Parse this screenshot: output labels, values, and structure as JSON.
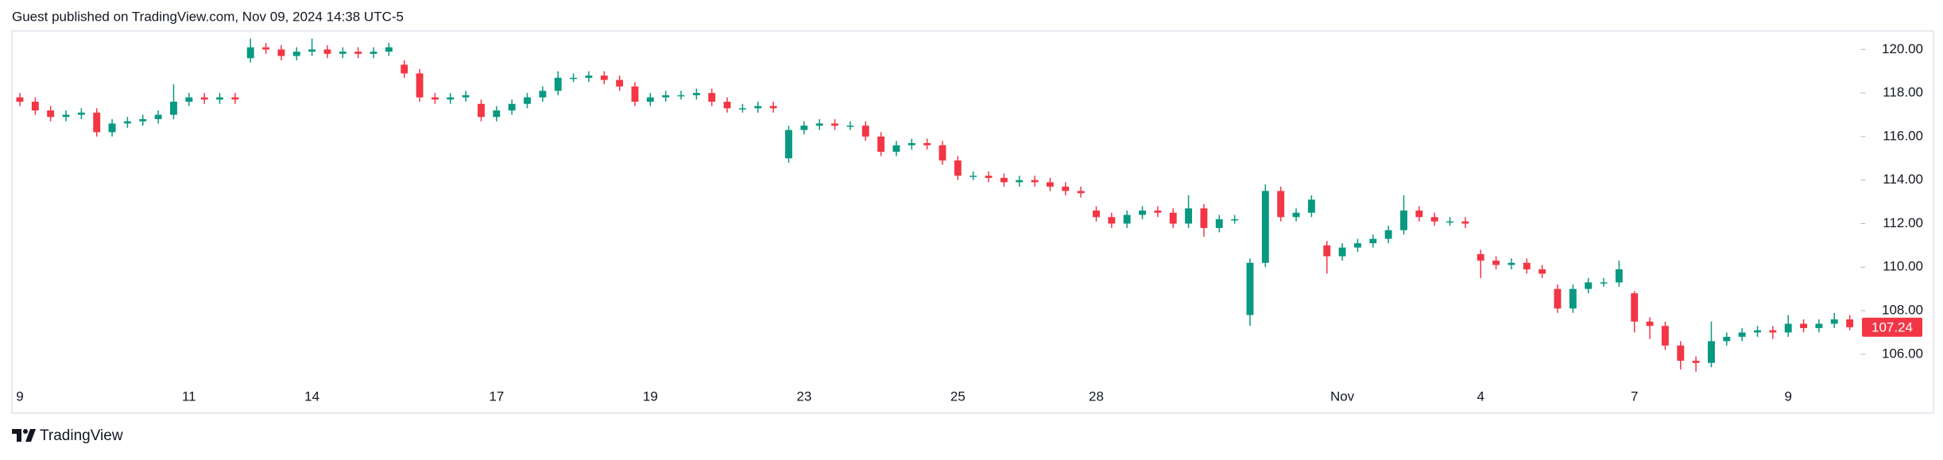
{
  "chart_data": {
    "type": "candlestick",
    "title": "Guest published on TradingView.com, Nov 09, 2024 14:38 UTC-5",
    "brand": "TradingView",
    "up_color": "#089981",
    "down_color": "#f23645",
    "ylim": [
      104.9,
      120.74
    ],
    "yticks": [
      {
        "value": 106,
        "label": "106.00"
      },
      {
        "value": 108,
        "label": "108.00"
      },
      {
        "value": 110,
        "label": "110.00"
      },
      {
        "value": 112,
        "label": "112.00"
      },
      {
        "value": 114,
        "label": "114.00"
      },
      {
        "value": 116,
        "label": "116.00"
      },
      {
        "value": 118,
        "label": "118.00"
      },
      {
        "value": 120,
        "label": "120.00"
      }
    ],
    "categories": [
      "9",
      null,
      null,
      null,
      null,
      null,
      null,
      null,
      null,
      null,
      null,
      "11",
      null,
      null,
      null,
      null,
      null,
      null,
      null,
      "14",
      null,
      null,
      null,
      null,
      null,
      null,
      null,
      null,
      null,
      null,
      null,
      "17",
      null,
      null,
      null,
      null,
      null,
      null,
      null,
      null,
      null,
      "19",
      null,
      null,
      null,
      null,
      null,
      null,
      null,
      null,
      null,
      "23",
      null,
      null,
      null,
      null,
      null,
      null,
      null,
      null,
      null,
      "25",
      null,
      null,
      null,
      null,
      null,
      null,
      null,
      null,
      "28",
      null,
      null,
      null,
      null,
      null,
      null,
      null,
      null,
      null,
      null,
      null,
      null,
      null,
      null,
      null,
      "Nov",
      null,
      null,
      null,
      null,
      null,
      null,
      null,
      null,
      "4",
      null,
      null,
      null,
      null,
      null,
      null,
      null,
      null,
      null,
      "7",
      null,
      null,
      null,
      null,
      null,
      null,
      null,
      null,
      null,
      "9",
      null,
      null,
      null,
      null
    ],
    "open": [
      117.8,
      117.6,
      117.2,
      116.9,
      117.0,
      117.1,
      116.2,
      116.6,
      116.7,
      116.8,
      117.0,
      117.6,
      117.8,
      117.7,
      117.8,
      119.6,
      120.1,
      120.0,
      119.7,
      119.9,
      120.0,
      119.8,
      119.9,
      119.8,
      119.9,
      119.3,
      118.9,
      117.8,
      117.7,
      117.8,
      117.5,
      116.9,
      117.2,
      117.5,
      117.8,
      118.1,
      118.7,
      118.7,
      118.8,
      118.6,
      118.3,
      117.6,
      117.8,
      117.9,
      117.9,
      118.0,
      117.6,
      117.3,
      117.3,
      117.4,
      115.0,
      116.3,
      116.5,
      116.6,
      116.5,
      116.5,
      116.0,
      115.3,
      115.6,
      115.7,
      115.6,
      114.9,
      114.2,
      114.2,
      114.1,
      113.9,
      114.0,
      113.9,
      113.7,
      113.5,
      112.6,
      112.3,
      112.0,
      112.4,
      112.6,
      112.5,
      112.0,
      112.7,
      111.8,
      112.2,
      107.8,
      110.2,
      113.5,
      112.3,
      112.5,
      111.0,
      110.5,
      110.9,
      111.1,
      111.3,
      111.7,
      112.6,
      112.3,
      112.1,
      112.1,
      110.6,
      110.3,
      110.1,
      110.2,
      109.9,
      109.0,
      108.1,
      109.0,
      109.3,
      109.3,
      108.8,
      107.5,
      107.3,
      106.4,
      105.7,
      105.6,
      106.6,
      106.8,
      107.0,
      107.1,
      107.0,
      107.4,
      107.2,
      107.4,
      107.6
    ],
    "high": [
      118.0,
      117.8,
      117.4,
      117.2,
      117.3,
      117.3,
      116.8,
      116.9,
      117.0,
      117.2,
      118.4,
      118.0,
      118.0,
      118.0,
      118.0,
      120.5,
      120.3,
      120.2,
      120.1,
      120.5,
      120.2,
      120.1,
      120.1,
      120.1,
      120.3,
      119.5,
      119.1,
      118.0,
      118.0,
      118.1,
      117.7,
      117.4,
      117.7,
      118.0,
      118.3,
      119.0,
      118.9,
      119.0,
      119.0,
      118.8,
      118.5,
      118.0,
      118.1,
      118.1,
      118.2,
      118.2,
      117.8,
      117.5,
      117.6,
      117.6,
      116.5,
      116.7,
      116.8,
      116.8,
      116.7,
      116.7,
      116.2,
      115.8,
      115.9,
      115.9,
      115.8,
      115.1,
      114.4,
      114.4,
      114.3,
      114.2,
      114.2,
      114.1,
      113.9,
      113.7,
      112.8,
      112.5,
      112.6,
      112.8,
      112.8,
      112.7,
      113.3,
      112.9,
      112.4,
      112.4,
      110.4,
      113.8,
      113.7,
      112.7,
      113.3,
      111.2,
      111.1,
      111.3,
      111.5,
      111.9,
      113.3,
      112.8,
      112.5,
      112.3,
      112.3,
      110.8,
      110.5,
      110.4,
      110.4,
      110.1,
      109.2,
      109.2,
      109.5,
      109.5,
      110.3,
      108.9,
      107.7,
      107.5,
      106.6,
      105.9,
      107.5,
      107.0,
      107.2,
      107.3,
      107.3,
      107.8,
      107.6,
      107.6,
      107.9,
      107.8
    ],
    "low": [
      117.4,
      117.0,
      116.7,
      116.7,
      116.8,
      116.0,
      116.0,
      116.4,
      116.5,
      116.6,
      116.8,
      117.4,
      117.5,
      117.5,
      117.5,
      119.4,
      119.8,
      119.5,
      119.5,
      119.7,
      119.6,
      119.6,
      119.6,
      119.6,
      119.7,
      118.7,
      117.6,
      117.5,
      117.5,
      117.6,
      116.7,
      116.7,
      117.0,
      117.3,
      117.6,
      117.9,
      118.5,
      118.5,
      118.4,
      118.1,
      117.4,
      117.4,
      117.6,
      117.7,
      117.7,
      117.4,
      117.1,
      117.1,
      117.1,
      117.1,
      114.8,
      116.1,
      116.3,
      116.3,
      116.3,
      115.8,
      115.1,
      115.1,
      115.4,
      115.4,
      114.7,
      114.0,
      114.0,
      113.9,
      113.7,
      113.7,
      113.7,
      113.5,
      113.3,
      113.2,
      112.1,
      111.8,
      111.8,
      112.2,
      112.3,
      111.8,
      111.8,
      111.4,
      111.6,
      112.0,
      107.3,
      110.0,
      112.1,
      112.1,
      112.3,
      109.7,
      110.3,
      110.7,
      110.9,
      111.1,
      111.5,
      112.1,
      111.9,
      111.9,
      111.8,
      109.5,
      109.9,
      109.9,
      109.7,
      109.5,
      107.9,
      107.9,
      108.8,
      109.1,
      109.1,
      107.0,
      106.7,
      106.2,
      105.3,
      105.2,
      105.4,
      106.4,
      106.6,
      106.8,
      106.7,
      106.8,
      107.0,
      107.0,
      107.2,
      107.1
    ],
    "close": [
      117.6,
      117.2,
      116.9,
      117.0,
      117.1,
      116.2,
      116.6,
      116.7,
      116.8,
      117.0,
      117.6,
      117.8,
      117.7,
      117.8,
      117.7,
      120.1,
      120.0,
      119.7,
      119.9,
      120.0,
      119.8,
      119.9,
      119.8,
      119.9,
      120.1,
      118.9,
      117.8,
      117.7,
      117.8,
      117.9,
      116.9,
      117.2,
      117.5,
      117.8,
      118.1,
      118.7,
      118.7,
      118.8,
      118.6,
      118.3,
      117.6,
      117.8,
      117.9,
      117.9,
      118.0,
      117.6,
      117.3,
      117.3,
      117.4,
      117.3,
      116.3,
      116.5,
      116.6,
      116.5,
      116.5,
      116.0,
      115.3,
      115.6,
      115.7,
      115.6,
      114.9,
      114.2,
      114.2,
      114.1,
      113.9,
      114.0,
      113.9,
      113.7,
      113.5,
      113.4,
      112.3,
      112.0,
      112.4,
      112.6,
      112.5,
      112.0,
      112.7,
      111.8,
      112.2,
      112.2,
      110.2,
      113.5,
      112.3,
      112.5,
      113.1,
      110.5,
      110.9,
      111.1,
      111.3,
      111.7,
      112.6,
      112.3,
      112.1,
      112.1,
      112.0,
      110.3,
      110.1,
      110.2,
      109.9,
      109.7,
      108.1,
      109.0,
      109.3,
      109.3,
      109.9,
      107.5,
      107.3,
      106.4,
      105.7,
      105.6,
      106.6,
      106.8,
      107.0,
      107.1,
      107.0,
      107.4,
      107.2,
      107.4,
      107.6,
      107.24
    ]
  }
}
